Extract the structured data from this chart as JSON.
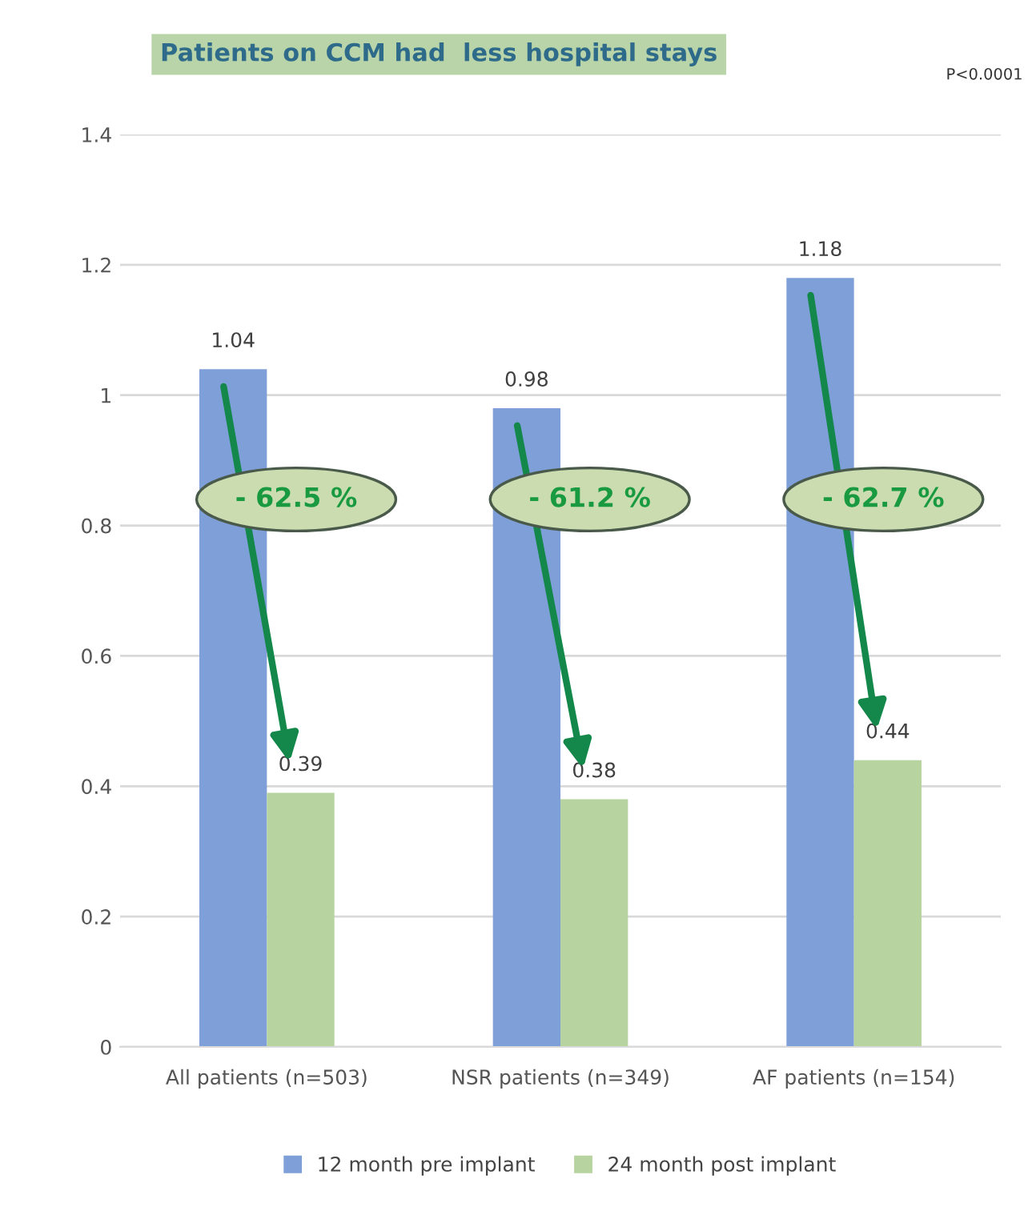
{
  "chart_data": {
    "type": "bar",
    "title": "Patients on CCM had  less hospital stays",
    "categories": [
      "All patients (n=503)",
      "NSR patients (n=349)",
      "AF patients (n=154)"
    ],
    "series": [
      {
        "name": "12 month pre implant",
        "color": "#7f9fd8",
        "values": [
          1.04,
          0.98,
          1.18
        ]
      },
      {
        "name": "24 month post implant",
        "color": "#b7d3a0",
        "values": [
          0.39,
          0.38,
          0.44
        ]
      }
    ],
    "ylim": [
      0,
      1.4
    ],
    "yticks": [
      0,
      0.2,
      0.4,
      0.6,
      0.8,
      1,
      1.2,
      1.4
    ],
    "grid": "y",
    "legend": "bottom",
    "data_labels": true,
    "annotations": [
      {
        "text": "- 62.5 %",
        "x": "All patients (n=503)",
        "y": 0.84
      },
      {
        "text": "- 61.2 %",
        "x": "NSR patients (n=349)",
        "y": 0.84
      },
      {
        "text": "- 62.7 %",
        "x": "AF patients (n=154)",
        "y": 0.84
      },
      "P<0.0001"
    ]
  }
}
